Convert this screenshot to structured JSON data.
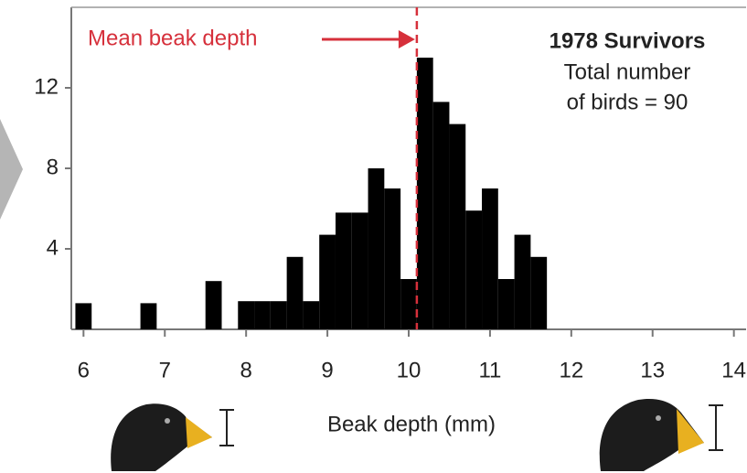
{
  "chart_data": {
    "type": "histogram",
    "xlabel": "Beak depth (mm)",
    "bins": [
      5.9,
      6.1,
      6.3,
      6.5,
      6.7,
      6.9,
      7.1,
      7.3,
      7.5,
      7.7,
      7.9,
      8.1,
      8.3,
      8.5,
      8.7,
      8.9,
      9.1,
      9.3,
      9.5,
      9.7,
      9.9,
      10.1,
      10.3,
      10.5,
      10.7,
      10.9,
      11.1,
      11.3,
      11.5,
      11.7
    ],
    "counts": [
      1.3,
      0,
      0,
      0,
      1.3,
      0,
      0,
      0,
      2.4,
      0,
      1.4,
      1.4,
      1.4,
      3.6,
      1.4,
      4.7,
      5.8,
      5.8,
      8,
      7,
      2.5,
      13.5,
      11.3,
      10.2,
      5.9,
      7,
      2.5,
      4.7,
      3.6
    ],
    "color": "#000000",
    "xlim": [
      5.85,
      14.15
    ],
    "xticks": [
      6,
      7,
      8,
      9,
      10,
      11,
      12,
      13,
      14
    ],
    "ylim": [
      0,
      16
    ],
    "yticks": [
      4,
      8,
      12
    ],
    "mean": 10.1,
    "mean_label": "Mean beak depth",
    "mean_color": "#d6303b",
    "annotation_title": "1978 Survivors",
    "annotation_lines": [
      "Total number",
      "of birds = 90"
    ]
  }
}
